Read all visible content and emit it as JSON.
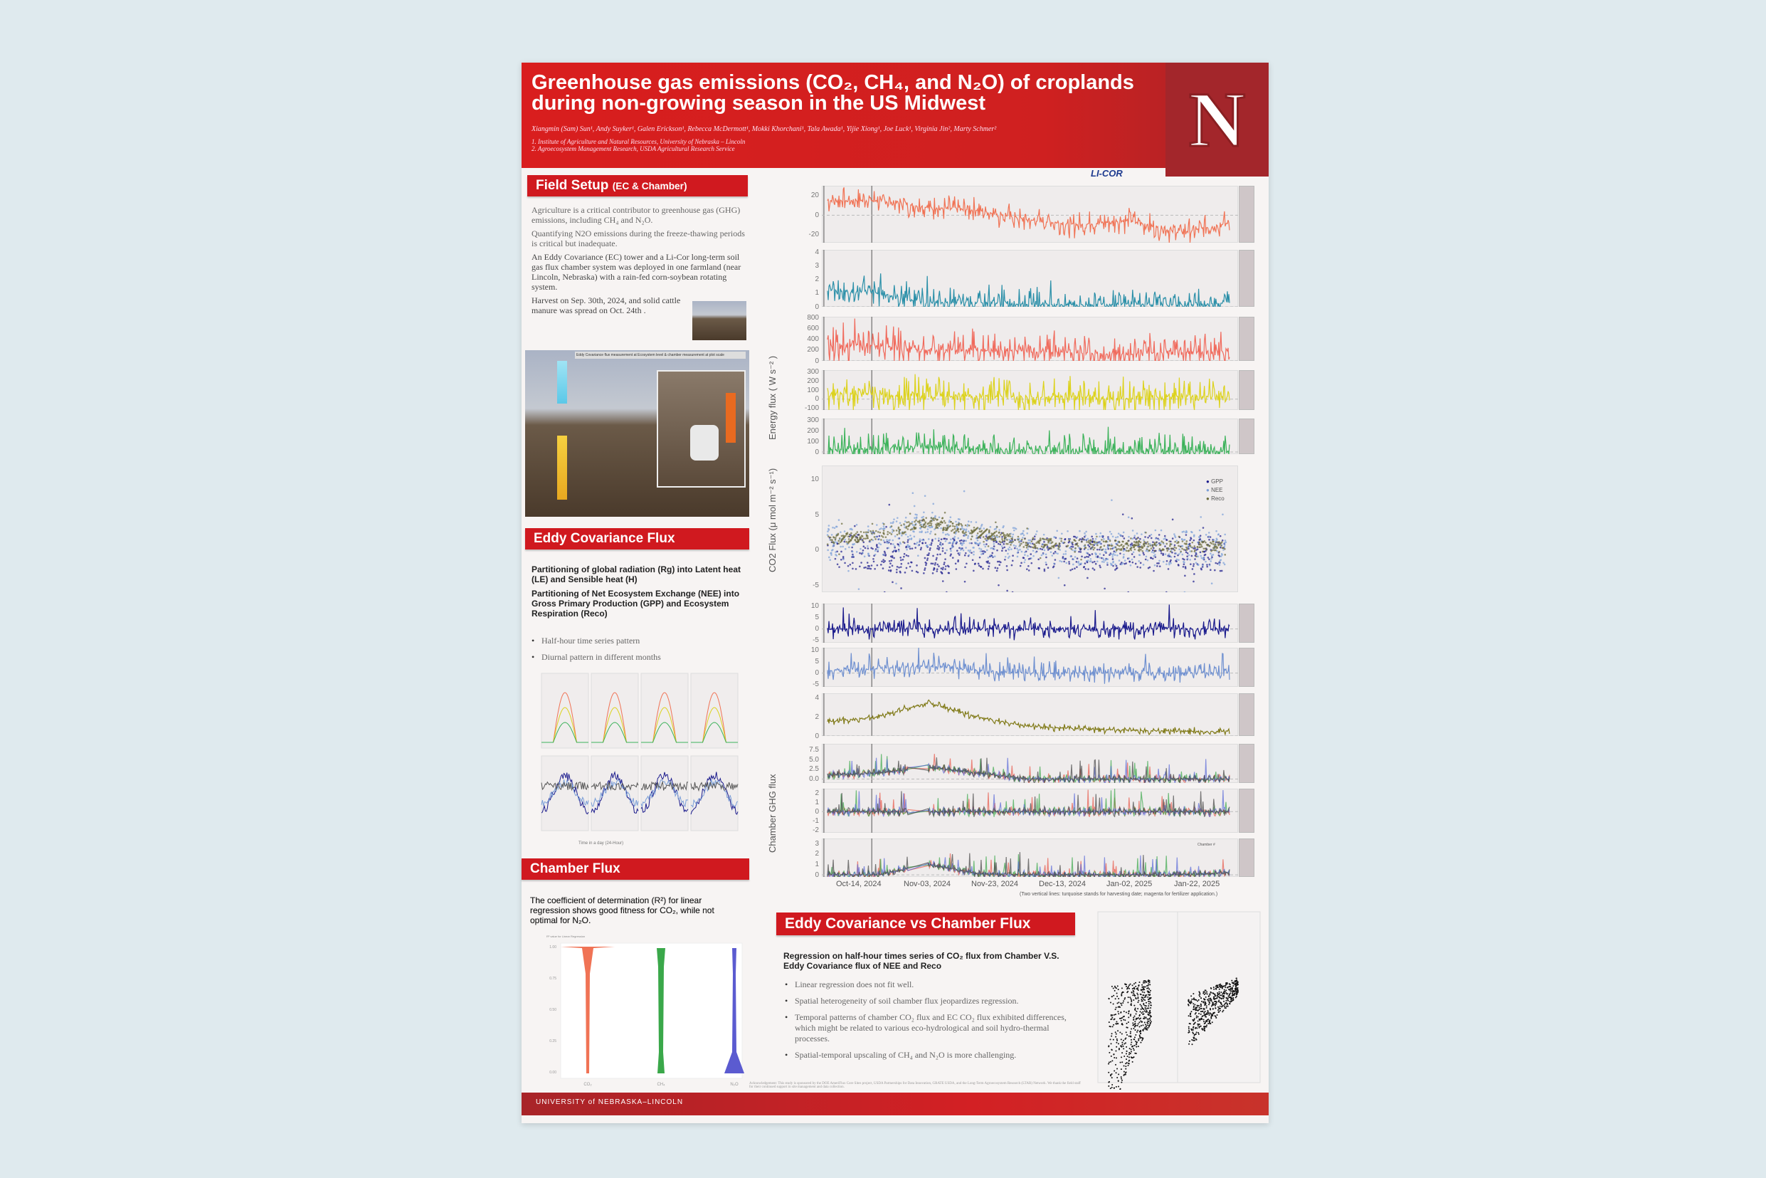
{
  "header": {
    "title": "Greenhouse gas emissions (CO₂, CH₄, and N₂O) of croplands during non-growing season in the US Midwest",
    "authors": "Xiangmin (Sam) Sun¹, Andy Suyker¹, Galen Erickson¹, Rebecca McDermott¹, Mokki Khorchani¹, Tala Awada¹, Yijie Xiong¹, Joe Luck¹, Virginia Jin², Marty Schmer²",
    "affiliations": [
      "1. Institute of Agriculture and Natural Resources, University of Nebraska – Lincoln",
      "2. Agroecosystem Management Research, USDA Agricultural Research Service"
    ],
    "logo_text": "N",
    "sponsor_logo": "LI-COR"
  },
  "field_setup": {
    "heading": "Field Setup",
    "heading_small": "(EC & Chamber)",
    "paragraphs": [
      "Agriculture is a critical contributor to greenhouse gas (GHG) emissions, including CH₄ and N₂O.",
      "Quantifying N2O emissions during the freeze-thawing periods is critical but inadequate.",
      "An Eddy Covariance (EC) tower and a Li-Cor long-term soil gas flux chamber system was deployed in one farmland (near Lincoln, Nebraska) with a rain-fed corn-soybean rotating system.",
      "Harvest on Sep. 30th, 2024, and solid cattle manure was spread on Oct. 24th ."
    ],
    "photo_caption": "Eddy Covariance flux measurement at Ecosystem level & chamber measurement at plot scale"
  },
  "ec_flux": {
    "heading": "Eddy Covariance Flux",
    "bold": [
      "Partitioning of global radiation (Rg) into Latent heat (LE) and Sensible heat (H)",
      "Partitioning of Net Ecosystem Exchange (NEE) into Gross Primary Production (GPP) and Ecosystem Respiration (Reco)"
    ],
    "bullets": [
      "Half-hour time series pattern",
      "Diurnal pattern in different months"
    ],
    "diurnal_xlabel": "Time in a day (24-Hour)"
  },
  "chamber": {
    "heading": "Chamber Flux",
    "text": "The coefficient of determination (R²) for linear regression shows good fitness for CO₂, while not optimal for N₂O.",
    "chart_title": "R² value for Linear Regression"
  },
  "ec_vs_chamber": {
    "heading": "Eddy Covariance vs Chamber Flux",
    "bold": "Regression on half-hour times series of CO₂ flux from Chamber V.S. Eddy Covariance flux of NEE and Reco",
    "bullets": [
      "Linear regression does not fit well.",
      "Spatial heterogeneity of soil chamber flux jeopardizes regression.",
      "Temporal patterns of chamber CO₂ flux and EC CO₂ flux exhibited differences, which might be related to various eco-hydrological and soil hydro-thermal processes.",
      "Spatial-temporal upscaling of CH₄ and N₂O is more challenging."
    ],
    "acknowledgment": "Acknowledgement: This study is sponsored by the DOE AmeriFlux Core Sites project, USDA Partnerships for Data Innovation, GRATE USDA, and the Long-Term Agroecosystem Research (LTAR) Network. We thank the field staff for their continued support in site management and data collection."
  },
  "footer": {
    "university": "UNIVERSITY of NEBRASKA–LINCOLN"
  },
  "chart_data": [
    {
      "type": "line",
      "title": "",
      "x_ticks": [
        "Oct-14, 2024",
        "Nov-03, 2024",
        "Nov-23, 2024",
        "Dec-13, 2024",
        "Jan-02, 2025",
        "Jan-22, 2025"
      ],
      "note": "(Two vertical lines: turquoise stands for harvesting date; magenta for fertilizer application.)",
      "panels": [
        {
          "yticks": [
            "20",
            "0",
            "-20"
          ],
          "ylim": [
            -28,
            30
          ],
          "color": "#f07355",
          "trend": [
            15,
            15,
            8,
            5,
            -5,
            -10,
            -5,
            -18,
            -8
          ]
        },
        {
          "yticks": [
            "4",
            "3",
            "2",
            "1",
            "0"
          ],
          "ylim": [
            0,
            4.2
          ],
          "color": "#2a8fa8",
          "trend": [
            1.2,
            1.0,
            0.3,
            0.3,
            0.2,
            0.15,
            0.2,
            0.1,
            0.3
          ]
        },
        {
          "yticks": [
            "800",
            "600",
            "400",
            "200",
            "0"
          ],
          "ylim": [
            0,
            820
          ],
          "color": "#f06a5c",
          "trend": [
            300,
            280,
            200,
            200,
            180,
            150,
            120,
            160,
            180
          ]
        },
        {
          "yticks": [
            "300",
            "200",
            "100",
            "0",
            "-100"
          ],
          "ylim": [
            -120,
            320
          ],
          "color": "#dcd21c",
          "trend": [
            60,
            50,
            30,
            30,
            20,
            20,
            10,
            30,
            30
          ]
        },
        {
          "yticks": [
            "300",
            "200",
            "100",
            "0"
          ],
          "ylim": [
            -20,
            320
          ],
          "color": "#3cb25a",
          "trend": [
            20,
            30,
            60,
            30,
            15,
            10,
            10,
            10,
            5
          ]
        }
      ],
      "energy_ylabel": "Energy flux ( W s⁻² )"
    },
    {
      "type": "scatter",
      "ylabel": "CO2 Flux (μ mol m⁻² s⁻¹)",
      "yticks": [
        "10",
        "5",
        "0",
        "-5"
      ],
      "ylim": [
        -6,
        12
      ],
      "series": [
        {
          "name": "GPP",
          "color": "#1a1a8c"
        },
        {
          "name": "NEE",
          "color": "#7b9fd8"
        },
        {
          "name": "Reco",
          "color": "#6b6b3a"
        }
      ]
    },
    {
      "type": "line",
      "panels": [
        {
          "yticks": [
            "10",
            "5",
            "0",
            "-5"
          ],
          "ylim": [
            -6,
            11
          ],
          "color": "#1a1a8c",
          "trend": [
            0,
            0,
            0,
            0,
            0,
            0,
            0,
            0,
            0
          ]
        },
        {
          "yticks": [
            "10",
            "5",
            "0",
            "-5"
          ],
          "ylim": [
            -6,
            11
          ],
          "color": "#6f90d0",
          "trend": [
            1,
            2,
            3,
            1,
            0,
            0,
            0,
            0,
            0
          ]
        },
        {
          "yticks": [
            "4",
            "2",
            "0"
          ],
          "ylim": [
            0,
            4.5
          ],
          "color": "#807a18",
          "trend": [
            1.5,
            2,
            3.5,
            2,
            1,
            0.8,
            0.6,
            0.5,
            0.5
          ]
        }
      ]
    },
    {
      "type": "line",
      "ylabel": "Chamber GHG flux",
      "panels": [
        {
          "yticks": [
            "7.5",
            "5.0",
            "2.5",
            "0.0"
          ],
          "ylim": [
            -1,
            9
          ],
          "trend": [
            1,
            1.5,
            3,
            1.5,
            0,
            0,
            0,
            0,
            0
          ]
        },
        {
          "yticks": [
            "2",
            "1",
            "0",
            "-1",
            "-2"
          ],
          "ylim": [
            -2.3,
            2.5
          ],
          "trend": [
            0,
            0,
            0,
            0,
            0,
            0,
            0,
            0,
            0
          ]
        },
        {
          "yticks": [
            "3",
            "2",
            "1",
            "0"
          ],
          "ylim": [
            -0.2,
            3.5
          ],
          "trend": [
            0,
            0,
            1,
            0.1,
            0,
            0,
            0,
            0,
            0.2
          ]
        }
      ],
      "legend_title": "Chamber #",
      "colors": [
        "#e8584a",
        "#3aa84a",
        "#5a6ad8",
        "#444444"
      ]
    },
    {
      "type": "violin",
      "yticks": [
        "1.00",
        "0.75",
        "0.50",
        "0.25",
        "0.00"
      ],
      "categories": [
        "CO₂",
        "CH₄",
        "N₂O"
      ],
      "colors": [
        "#f07355",
        "#3aa84a",
        "#5b5bd0"
      ]
    }
  ]
}
